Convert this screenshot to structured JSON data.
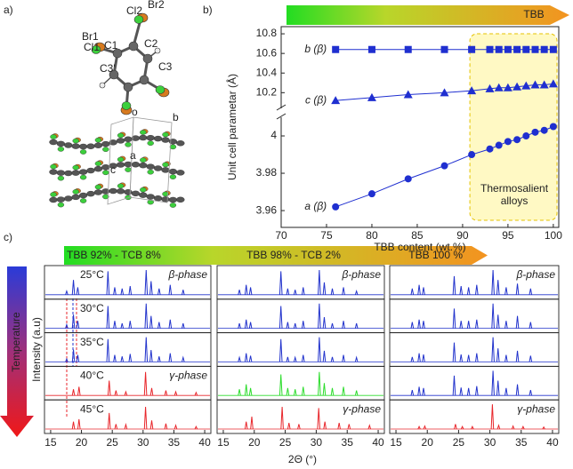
{
  "panel_labels": [
    "a)",
    "b)",
    "c)"
  ],
  "structure": {
    "atom_labels": [
      "Br2",
      "Cl2",
      "Br1",
      "Cl1",
      "C1",
      "C2",
      "C3",
      "C3'"
    ],
    "axis_labels": [
      "o",
      "b",
      "a",
      "c"
    ]
  },
  "chart_data": [
    {
      "type": "scatter",
      "banner": "TBB",
      "xlabel": "TBB content (wt.%)",
      "ylabel": "Unit cell parametar (Å)",
      "xlim": [
        70,
        100.6
      ],
      "xticks": [
        70,
        75,
        80,
        85,
        90,
        95,
        100
      ],
      "ylim": [
        3.951,
        4.01
      ],
      "yticks": [
        3.96,
        3.98,
        4
      ],
      "ylim_upper": [
        10.04,
        10.873
      ],
      "yticks_upper": [
        10.2,
        10.4,
        10.6,
        10.8
      ],
      "x": [
        76,
        80,
        84,
        88,
        91,
        93,
        94,
        95,
        96,
        97,
        98,
        99,
        100
      ],
      "series": [
        {
          "name": "b (β)",
          "color": "#1f2fd0",
          "marker": "square",
          "axis": "upper",
          "values": [
            10.64,
            10.64,
            10.64,
            10.64,
            10.64,
            10.64,
            10.64,
            10.64,
            10.64,
            10.64,
            10.64,
            10.64,
            10.64
          ]
        },
        {
          "name": "c (β)",
          "color": "#1f2fd0",
          "marker": "triangle",
          "axis": "upper",
          "values": [
            10.12,
            10.15,
            10.18,
            10.2,
            10.22,
            10.24,
            10.25,
            10.25,
            10.26,
            10.27,
            10.28,
            10.28,
            10.29
          ]
        },
        {
          "name": "a (β)",
          "color": "#1f2fd0",
          "marker": "circle",
          "values": [
            3.962,
            3.969,
            3.977,
            3.984,
            3.99,
            3.993,
            3.995,
            3.997,
            3.998,
            4.0,
            4.002,
            4.003,
            4.005
          ]
        }
      ],
      "annotation": {
        "text": "Thermosalient alloys",
        "span": [
          90.8,
          100.6
        ]
      }
    },
    {
      "type": "pxrd",
      "xlabel": "2Θ (°)",
      "ylabel": "Intensity (a.u)",
      "temperature_axis": "Temperature",
      "xlim": [
        14,
        41
      ],
      "xticks": [
        15,
        20,
        25,
        30,
        35,
        40
      ],
      "compositions": [
        "TBB 92% - TCB 8%",
        "TBB 98% - TCB 2%",
        "TBB 100 %"
      ],
      "temperatures": [
        "25°C",
        "30°C",
        "35°C",
        "40°C",
        "45°C"
      ],
      "columns": [
        {
          "patterns": [
            {
              "label": "β-phase",
              "color": "#2233cc",
              "x": [
                17.6,
                18.7,
                19.4,
                24.3,
                25.4,
                26.6,
                27.9,
                30.5,
                31.3,
                32.6,
                34.4,
                36.5
              ],
              "values": [
                0.15,
                0.6,
                0.3,
                0.95,
                0.3,
                0.25,
                0.35,
                1,
                0.55,
                0.25,
                0.4,
                0.2
              ]
            },
            {
              "color": "#2233cc",
              "x": [
                17.6,
                18.7,
                19.4,
                24.3,
                25.4,
                26.6,
                27.9,
                30.5,
                31.3,
                32.6,
                34.4,
                36.5
              ],
              "values": [
                0.15,
                0.55,
                0.3,
                0.9,
                0.3,
                0.2,
                0.3,
                1,
                0.5,
                0.25,
                0.35,
                0.2
              ]
            },
            {
              "color": "#2233cc",
              "x": [
                17.6,
                18.7,
                19.4,
                24.3,
                25.4,
                26.6,
                27.9,
                30.5,
                31.3,
                32.6,
                34.4,
                36.5
              ],
              "values": [
                0.12,
                0.5,
                0.28,
                0.92,
                0.28,
                0.22,
                0.32,
                1,
                0.48,
                0.22,
                0.35,
                0.18
              ]
            },
            {
              "label": "γ-phase",
              "color": "#e8262b",
              "x": [
                18.7,
                19.6,
                24.5,
                25.6,
                27.2,
                30.4,
                31.4,
                33.7,
                35.3,
                38.6
              ],
              "values": [
                0.25,
                0.35,
                0.6,
                0.2,
                0.15,
                0.95,
                0.3,
                0.2,
                0.15,
                0.12
              ]
            },
            {
              "color": "#e8262b",
              "x": [
                18.7,
                19.6,
                24.5,
                25.6,
                27.2,
                30.4,
                31.4,
                33.7,
                35.3,
                38.6
              ],
              "values": [
                0.3,
                0.4,
                0.65,
                0.2,
                0.18,
                0.9,
                0.35,
                0.22,
                0.15,
                0.1
              ]
            }
          ]
        },
        {
          "patterns": [
            {
              "label": "β-phase",
              "color": "#2233cc",
              "x": [
                17.6,
                18.7,
                19.4,
                24.3,
                25.4,
                26.6,
                27.9,
                30.5,
                31.3,
                32.6,
                34.4,
                36.5
              ],
              "values": [
                0.2,
                0.4,
                0.3,
                0.95,
                0.25,
                0.2,
                0.3,
                1,
                0.5,
                0.25,
                0.3,
                0.15
              ]
            },
            {
              "color": "#2233cc",
              "x": [
                17.6,
                18.7,
                19.4,
                24.3,
                25.4,
                26.6,
                27.9,
                30.5,
                31.3,
                32.6,
                34.4,
                36.5
              ],
              "values": [
                0.2,
                0.35,
                0.25,
                0.9,
                0.25,
                0.2,
                0.3,
                1,
                0.45,
                0.2,
                0.3,
                0.2
              ]
            },
            {
              "color": "#2233cc",
              "x": [
                17.6,
                18.7,
                19.4,
                24.3,
                25.4,
                26.6,
                27.9,
                30.5,
                31.3,
                32.6,
                34.4,
                36.5
              ],
              "values": [
                0.18,
                0.35,
                0.25,
                0.92,
                0.2,
                0.18,
                0.28,
                1,
                0.45,
                0.2,
                0.28,
                0.18
              ]
            },
            {
              "color": "#2bdc2b",
              "x": [
                17.6,
                18.7,
                19.4,
                24.3,
                25.4,
                26.6,
                27.9,
                30.5,
                31.3,
                32.6,
                34.4,
                36.5
              ],
              "values": [
                0.25,
                0.45,
                0.3,
                0.85,
                0.3,
                0.25,
                0.35,
                0.95,
                0.5,
                0.3,
                0.35,
                0.2
              ]
            },
            {
              "label": "γ-phase",
              "color": "#e8262b",
              "x": [
                18.7,
                19.6,
                24.5,
                25.6,
                27.2,
                30.4,
                31.4,
                33.7,
                35.3,
                38.6
              ],
              "values": [
                0.3,
                0.5,
                0.9,
                0.25,
                0.2,
                0.85,
                0.3,
                0.25,
                0.2,
                0.15
              ]
            }
          ]
        },
        {
          "patterns": [
            {
              "label": "β-phase",
              "color": "#2233cc",
              "x": [
                17.6,
                18.7,
                19.4,
                24.3,
                25.4,
                26.6,
                27.9,
                30.5,
                31.3,
                32.6,
                34.4,
                36.5
              ],
              "values": [
                0.25,
                0.4,
                0.3,
                0.75,
                0.35,
                0.3,
                0.4,
                1,
                0.6,
                0.3,
                0.45,
                0.25
              ]
            },
            {
              "color": "#2233cc",
              "x": [
                17.6,
                18.7,
                19.4,
                24.3,
                25.4,
                26.6,
                27.9,
                30.5,
                31.3,
                32.6,
                34.4,
                36.5
              ],
              "values": [
                0.25,
                0.35,
                0.3,
                0.8,
                0.3,
                0.3,
                0.35,
                1,
                0.55,
                0.3,
                0.5,
                0.25
              ]
            },
            {
              "color": "#2233cc",
              "x": [
                17.6,
                18.7,
                19.4,
                24.3,
                25.4,
                26.6,
                27.9,
                30.5,
                31.3,
                32.6,
                34.4,
                36.5
              ],
              "values": [
                0.2,
                0.35,
                0.3,
                0.78,
                0.3,
                0.28,
                0.35,
                1,
                0.55,
                0.28,
                0.45,
                0.25
              ]
            },
            {
              "color": "#2233cc",
              "x": [
                17.6,
                18.7,
                19.4,
                24.3,
                25.4,
                26.6,
                27.9,
                30.5,
                31.3,
                32.6,
                34.4,
                36.5
              ],
              "values": [
                0.22,
                0.35,
                0.3,
                0.8,
                0.32,
                0.3,
                0.38,
                1,
                0.6,
                0.3,
                0.45,
                0.22
              ]
            },
            {
              "label": "γ-phase",
              "color": "#e8262b",
              "x": [
                18.7,
                19.6,
                24.5,
                25.6,
                27.2,
                30.4,
                31.4,
                33.7,
                35.3,
                38.6
              ],
              "values": [
                0.1,
                0.12,
                0.2,
                0.1,
                0.1,
                1,
                0.15,
                0.12,
                0.1,
                0.08
              ]
            }
          ]
        }
      ]
    }
  ]
}
